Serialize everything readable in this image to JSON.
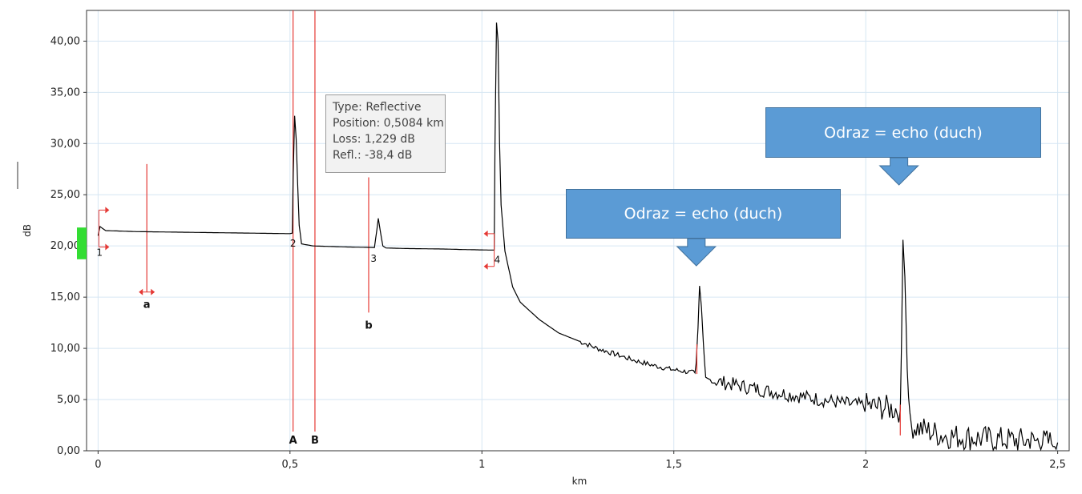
{
  "chart_data": {
    "type": "line",
    "title": "",
    "xlabel": "km",
    "ylabel": "dB",
    "xlim": [
      -0.03,
      2.53
    ],
    "ylim": [
      0,
      43
    ],
    "grid": true,
    "x_ticks": [
      {
        "value": 0,
        "label": "0"
      },
      {
        "value": 0.5,
        "label": "0,5"
      },
      {
        "value": 1,
        "label": "1"
      },
      {
        "value": 1.5,
        "label": "1,5"
      },
      {
        "value": 2,
        "label": "2"
      },
      {
        "value": 2.5,
        "label": "2,5"
      }
    ],
    "y_ticks": [
      {
        "value": 0,
        "label": "0,00"
      },
      {
        "value": 5,
        "label": "5,00"
      },
      {
        "value": 10,
        "label": "10,00"
      },
      {
        "value": 15,
        "label": "15,00"
      },
      {
        "value": 20,
        "label": "20,00"
      },
      {
        "value": 25,
        "label": "25,00"
      },
      {
        "value": 30,
        "label": "30,00"
      },
      {
        "value": 35,
        "label": "35,00"
      },
      {
        "value": 40,
        "label": "40,00"
      }
    ],
    "series": [
      {
        "name": "",
        "color": "#000000",
        "points": [
          [
            0.0,
            21.0
          ],
          [
            0.005,
            21.9
          ],
          [
            0.012,
            21.7
          ],
          [
            0.02,
            21.5
          ],
          [
            0.1,
            21.4
          ],
          [
            0.2,
            21.35
          ],
          [
            0.3,
            21.3
          ],
          [
            0.4,
            21.25
          ],
          [
            0.5,
            21.2
          ],
          [
            0.506,
            21.25
          ],
          [
            0.508,
            26.5
          ],
          [
            0.512,
            32.7
          ],
          [
            0.516,
            30.5
          ],
          [
            0.52,
            26.0
          ],
          [
            0.524,
            22.0
          ],
          [
            0.53,
            20.2
          ],
          [
            0.56,
            20.0
          ],
          [
            0.65,
            19.9
          ],
          [
            0.72,
            19.85
          ],
          [
            0.726,
            21.5
          ],
          [
            0.73,
            22.7
          ],
          [
            0.735,
            21.5
          ],
          [
            0.742,
            20.0
          ],
          [
            0.75,
            19.8
          ],
          [
            0.8,
            19.75
          ],
          [
            0.9,
            19.7
          ],
          [
            0.95,
            19.65
          ],
          [
            1.02,
            19.6
          ],
          [
            1.032,
            19.6
          ],
          [
            1.034,
            30.0
          ],
          [
            1.038,
            41.8
          ],
          [
            1.042,
            40.0
          ],
          [
            1.046,
            30.0
          ],
          [
            1.05,
            24.0
          ],
          [
            1.06,
            19.5
          ],
          [
            1.08,
            16.0
          ],
          [
            1.1,
            14.5
          ],
          [
            1.15,
            12.8
          ],
          [
            1.2,
            11.5
          ],
          [
            1.3,
            10.0
          ],
          [
            1.35,
            9.4
          ],
          [
            1.4,
            8.8
          ],
          [
            1.45,
            8.3
          ],
          [
            1.5,
            7.9
          ],
          [
            1.555,
            7.6
          ],
          [
            1.558,
            8.5
          ],
          [
            1.563,
            12.0
          ],
          [
            1.567,
            16.1
          ],
          [
            1.572,
            14.0
          ],
          [
            1.577,
            10.5
          ],
          [
            1.583,
            7.0
          ],
          [
            1.65,
            6.5
          ],
          [
            1.75,
            5.8
          ],
          [
            1.85,
            5.2
          ],
          [
            1.95,
            4.6
          ],
          [
            2.05,
            4.2
          ],
          [
            2.09,
            4.0
          ],
          [
            2.093,
            10.0
          ],
          [
            2.097,
            20.6
          ],
          [
            2.102,
            17.0
          ],
          [
            2.108,
            8.0
          ],
          [
            2.115,
            2.5
          ],
          [
            2.2,
            1.5
          ],
          [
            2.3,
            1.2
          ],
          [
            2.4,
            1.0
          ],
          [
            2.5,
            0.8
          ]
        ]
      }
    ],
    "markers": [
      {
        "label": "A",
        "x": 0.508,
        "color": "#e53935"
      },
      {
        "label": "B",
        "x": 0.565,
        "color": "#e53935"
      }
    ],
    "cursors": [
      {
        "label": "a",
        "x": 0.127,
        "y_top": 28.0,
        "y_bottom": 15.5,
        "color": "#e53935"
      },
      {
        "label": "b",
        "x": 0.705,
        "y_top": 26.7,
        "y_bottom": 13.5,
        "color": "#e53935"
      }
    ],
    "events": [
      {
        "label": "1",
        "x": 0.0,
        "y": 20.3
      },
      {
        "label": "2",
        "x": 0.5,
        "y": 21.2
      },
      {
        "label": "3",
        "x": 0.71,
        "y": 19.7
      },
      {
        "label": "4",
        "x": 1.032,
        "y": 19.6
      }
    ],
    "tooltip": {
      "type": "Type: Reflective",
      "position": "Position: 0,5084 km",
      "loss": "Loss: 1,229 dB",
      "refl": "Refl.: -38,4 dB"
    },
    "annotations": [
      {
        "text": "Odraz = echo (duch)",
        "points_to_x": 1.567
      },
      {
        "text": "Odraz = echo (duch)",
        "points_to_x": 2.097
      }
    ]
  }
}
